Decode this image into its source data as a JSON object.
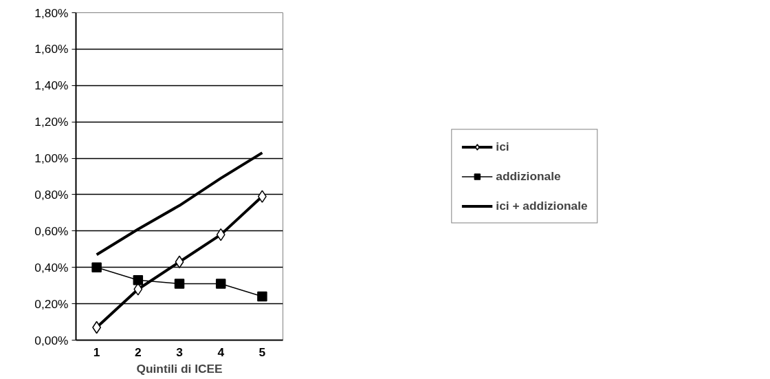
{
  "chart_data": {
    "type": "line",
    "xlabel": "Quintili di ICEE",
    "categories": [
      "1",
      "2",
      "3",
      "4",
      "5"
    ],
    "series": [
      {
        "name": "ici",
        "color": "#000000",
        "marker": "diamond",
        "values": [
          0.07,
          0.28,
          0.43,
          0.58,
          0.79
        ]
      },
      {
        "name": "addizionale",
        "color": "#000000",
        "marker": "square",
        "values": [
          0.4,
          0.33,
          0.31,
          0.31,
          0.24
        ]
      },
      {
        "name": "ici + addizionale",
        "color": "#000000",
        "marker": "none",
        "values": [
          0.47,
          0.61,
          0.74,
          0.89,
          1.03
        ]
      }
    ],
    "ylim": [
      0,
      1.8
    ],
    "yticks": [
      {
        "value": 0,
        "label": "0,00%"
      },
      {
        "value": 0.2,
        "label": "0,20%"
      },
      {
        "value": 0.4,
        "label": "0,40%"
      },
      {
        "value": 0.6,
        "label": "0,60%"
      },
      {
        "value": 0.8,
        "label": "0,80%"
      },
      {
        "value": 1.0,
        "label": "1,00%"
      },
      {
        "value": 1.2,
        "label": "1,20%"
      },
      {
        "value": 1.4,
        "label": "1,40%"
      },
      {
        "value": 1.6,
        "label": "1,60%"
      },
      {
        "value": 1.8,
        "label": "1,80%"
      }
    ],
    "grid": "y",
    "legend": "right"
  }
}
